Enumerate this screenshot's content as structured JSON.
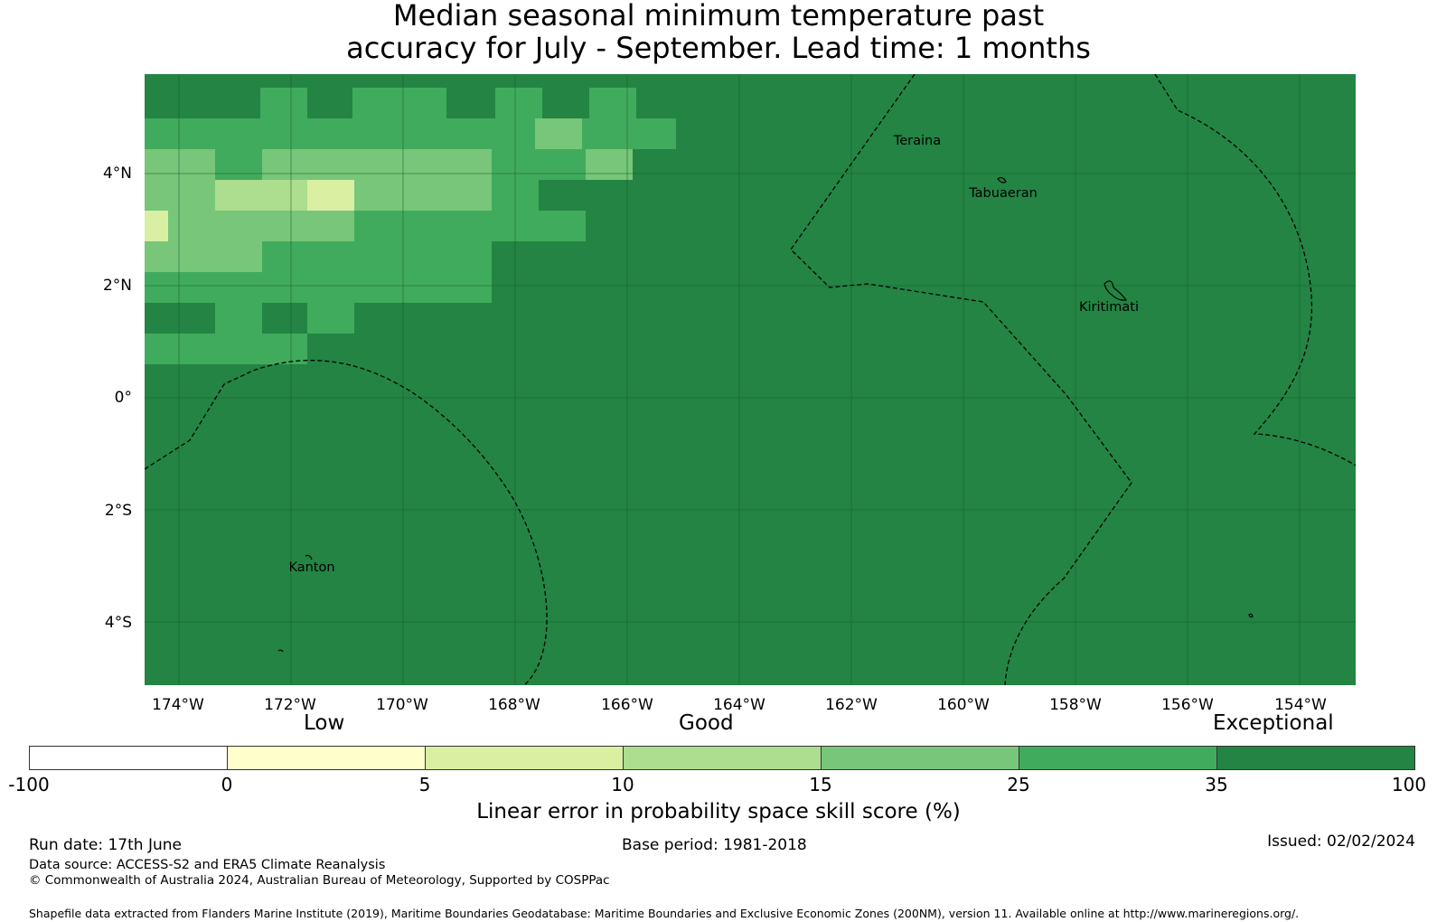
{
  "title": {
    "line1": "Median seasonal minimum temperature past",
    "line2": "accuracy for July - September. Lead time: 1 months"
  },
  "map": {
    "lat_labels": [
      "4°N",
      "2°N",
      "0°",
      "2°S",
      "4°S"
    ],
    "lon_labels": [
      "174°W",
      "172°W",
      "170°W",
      "168°W",
      "166°W",
      "164°W",
      "162°W",
      "160°W",
      "158°W",
      "156°W",
      "154°W"
    ],
    "places": [
      "Teraina",
      "Tabuaeran",
      "Kiritimati",
      "Kanton"
    ],
    "colors": {
      "c0": "#ffffff",
      "c1": "#ffffcc",
      "c2": "#d9f0a3",
      "c3": "#addd8e",
      "c4": "#78c679",
      "c5": "#41ab5d",
      "c6": "#238443"
    }
  },
  "legend": {
    "categories": [
      "Low",
      "Good",
      "Exceptional"
    ],
    "ticks": [
      "-100",
      "0",
      "5",
      "10",
      "15",
      "25",
      "35",
      "100"
    ],
    "label": "Linear error in probability space skill score (%)"
  },
  "footer": {
    "run_date": "Run date: 17th June",
    "base_period": "Base period: 1981-2018",
    "issued": "Issued: 02/02/2024",
    "data_source": "Data source: ACCESS-S2 and ERA5 Climate Reanalysis",
    "copyright": "© Commonwealth of Australia 2024, Australian Bureau of Meteorology, Supported by COSPPac",
    "shapefile": "Shapefile data extracted from Flanders Marine Institute (2019), Maritime Boundaries Geodatabase: Maritime Boundaries and Exclusive Economic Zones (200NM), version 11. Available online at http://www.marineregions.org/."
  }
}
